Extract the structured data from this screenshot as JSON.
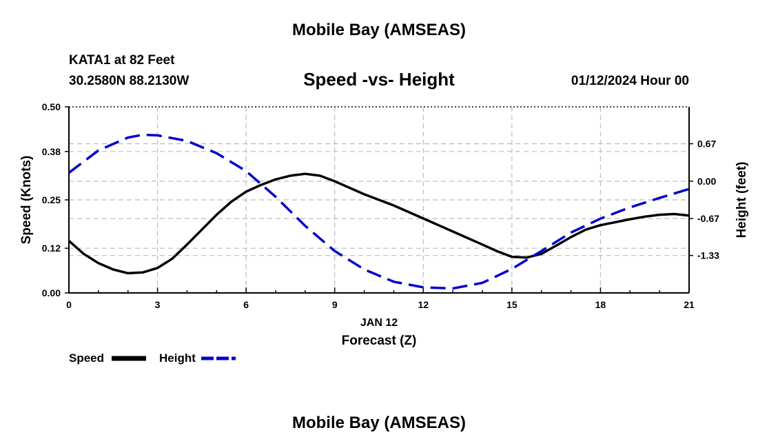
{
  "header": {
    "title": "Mobile Bay (AMSEAS)",
    "station": "KATA1 at 82 Feet",
    "coordinates": "30.2580N  88.2130W",
    "chart_title": "Speed -vs- Height",
    "datetime": "01/12/2024 Hour 00"
  },
  "footer": {
    "title": "Mobile Bay (AMSEAS)"
  },
  "colors": {
    "speed": "#000000",
    "height": "#0000cc",
    "grid": "#bbbbbb"
  },
  "chart_data": {
    "type": "line",
    "title": "Speed -vs- Height",
    "xlabel": "Forecast (Z)",
    "date_label": "JAN 12",
    "ylabel_left": "Speed (Knots)",
    "ylabel_right": "Height (feet)",
    "xlim": [
      0,
      21
    ],
    "ylim_left": [
      0,
      0.5
    ],
    "ylim_right": [
      -2.0,
      1.33
    ],
    "x_ticks": [
      0,
      3,
      6,
      9,
      12,
      15,
      18,
      21
    ],
    "y_ticks_left": [
      "0.00",
      "0.12",
      "0.25",
      "0.38",
      "0.50"
    ],
    "y_ticks_right": [
      "0.67",
      "0.00",
      "-0.67",
      "-1.33"
    ],
    "grid": true,
    "legend": {
      "placement": "bottom-left",
      "entries": [
        "Speed",
        "Height"
      ]
    },
    "series": [
      {
        "name": "Speed",
        "axis": "left",
        "style": "solid",
        "x": [
          0,
          0.5,
          1,
          1.5,
          2,
          2.5,
          3,
          3.5,
          4,
          4.5,
          5,
          5.5,
          6,
          6.5,
          7,
          7.5,
          8,
          8.5,
          9,
          10,
          11,
          12,
          13,
          14,
          14.5,
          15,
          15.5,
          16,
          16.5,
          17,
          17.5,
          18,
          18.5,
          19,
          19.5,
          20,
          20.5,
          21
        ],
        "values": [
          0.14,
          0.105,
          0.08,
          0.063,
          0.053,
          0.055,
          0.067,
          0.092,
          0.13,
          0.17,
          0.21,
          0.245,
          0.272,
          0.29,
          0.305,
          0.315,
          0.32,
          0.315,
          0.3,
          0.265,
          0.235,
          0.2,
          0.165,
          0.13,
          0.112,
          0.097,
          0.095,
          0.105,
          0.127,
          0.15,
          0.17,
          0.182,
          0.19,
          0.198,
          0.205,
          0.21,
          0.212,
          0.208
        ]
      },
      {
        "name": "Height",
        "axis": "right",
        "style": "dashed",
        "x": [
          0,
          1,
          2,
          2.5,
          3,
          4,
          5,
          6,
          7,
          8,
          9,
          10,
          11,
          12,
          13,
          14,
          15,
          16,
          17,
          18,
          19,
          20,
          21
        ],
        "values": [
          0.15,
          0.55,
          0.78,
          0.83,
          0.82,
          0.72,
          0.5,
          0.18,
          -0.28,
          -0.8,
          -1.25,
          -1.58,
          -1.8,
          -1.9,
          -1.92,
          -1.82,
          -1.57,
          -1.25,
          -0.92,
          -0.67,
          -0.47,
          -0.3,
          -0.14
        ]
      }
    ]
  }
}
